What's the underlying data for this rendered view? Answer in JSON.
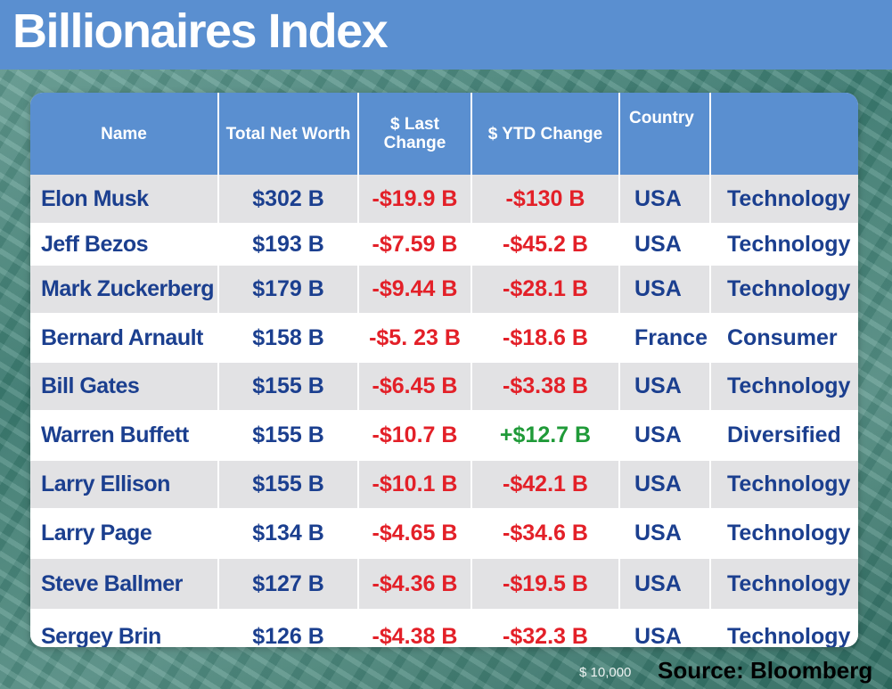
{
  "header": {
    "title": "Billionaires Index"
  },
  "table": {
    "columns": [
      "Name",
      "Total Net Worth",
      "$ Last Change",
      "$ YTD Change",
      "Country",
      ""
    ]
  },
  "chart_data": {
    "type": "table",
    "title": "Billionaires Index",
    "columns": [
      "Name",
      "Total Net Worth",
      "$ Last Change",
      "$ YTD Change",
      "Country",
      ""
    ],
    "rows": [
      {
        "name": "Elon Musk",
        "worth": "$302 B",
        "last": "-$19.9 B",
        "ytd": "-$130 B",
        "country": "USA",
        "sector": "Technology"
      },
      {
        "name": "Jeff Bezos",
        "worth": "$193 B",
        "last": "-$7.59 B",
        "ytd": "-$45.2 B",
        "country": "USA",
        "sector": "Technology"
      },
      {
        "name": "Mark Zuckerberg",
        "worth": "$179 B",
        "last": "-$9.44 B",
        "ytd": "-$28.1 B",
        "country": "USA",
        "sector": "Technology"
      },
      {
        "name": "Bernard Arnault",
        "worth": "$158 B",
        "last": "-$5. 23 B",
        "ytd": "-$18.6 B",
        "country": "France",
        "sector": "Consumer"
      },
      {
        "name": "Bill Gates",
        "worth": "$155 B",
        "last": "-$6.45 B",
        "ytd": "-$3.38 B",
        "country": "USA",
        "sector": "Technology"
      },
      {
        "name": "Warren Buffett",
        "worth": "$155 B",
        "last": "-$10.7 B",
        "ytd": "+$12.7 B",
        "country": "USA",
        "sector": "Diversified"
      },
      {
        "name": "Larry Ellison",
        "worth": "$155 B",
        "last": "-$10.1 B",
        "ytd": "-$42.1 B",
        "country": "USA",
        "sector": "Technology"
      },
      {
        "name": "Larry Page",
        "worth": "$134 B",
        "last": "-$4.65 B",
        "ytd": "-$34.6 B",
        "country": "USA",
        "sector": "Technology"
      },
      {
        "name": "Steve Ballmer",
        "worth": "$127 B",
        "last": "-$4.36 B",
        "ytd": "-$19.5 B",
        "country": "USA",
        "sector": "Technology"
      },
      {
        "name": "Sergey Brin",
        "worth": "$126 B",
        "last": "-$4.38 B",
        "ytd": "-$32.3 B",
        "country": "USA",
        "sector": "Technology"
      }
    ]
  },
  "footer": {
    "bill_denomination": "$ 10,000",
    "source": "Source: Bloomberg"
  },
  "colors": {
    "header_blue": "#5a8fd0",
    "text_navy": "#1b3f8f",
    "negative_red": "#e32028",
    "positive_green": "#1f9a38",
    "row_gray": "#e2e2e4"
  }
}
